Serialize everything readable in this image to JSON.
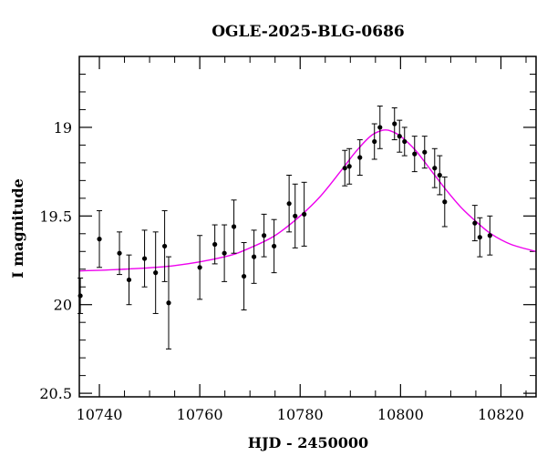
{
  "chart_data": {
    "type": "scatter",
    "title": "OGLE-2025-BLG-0686",
    "xlabel": "HJD - 2450000",
    "ylabel": "I magnitude",
    "xlim": [
      10736,
      10827
    ],
    "ylim": [
      20.52,
      18.6
    ],
    "y_inverted": true,
    "grid": false,
    "x_ticks": [
      10740,
      10760,
      10780,
      10800,
      10820
    ],
    "x_tick_labels": [
      "10740",
      "10760",
      "10780",
      "10800",
      "10820"
    ],
    "y_ticks": [
      19,
      19.5,
      20,
      20.5
    ],
    "y_tick_labels": [
      "19",
      "19.5",
      "20",
      "20.5"
    ],
    "x_minor_step": 5,
    "y_minor_step": 0.1,
    "colors": {
      "model": "#ee00ee",
      "points": "#000000",
      "frame": "#000000"
    },
    "series": [
      {
        "kind": "points_with_errorbars",
        "x": [
          10736.2,
          10740.0,
          10744.0,
          10745.9,
          10749.0,
          10751.2,
          10753.0,
          10753.8,
          10760.0,
          10763.0,
          10764.9,
          10766.8,
          10768.8,
          10770.8,
          10772.8,
          10774.8,
          10777.8,
          10779.0,
          10780.8,
          10788.9,
          10789.8,
          10791.9,
          10794.8,
          10795.9,
          10798.8,
          10799.8,
          10800.8,
          10802.8,
          10804.8,
          10806.8,
          10807.8,
          10808.8,
          10814.8,
          10815.8,
          10817.8
        ],
        "y": [
          19.95,
          19.63,
          19.71,
          19.86,
          19.74,
          19.82,
          19.67,
          19.99,
          19.79,
          19.66,
          19.71,
          19.56,
          19.84,
          19.73,
          19.61,
          19.67,
          19.43,
          19.5,
          19.49,
          19.23,
          19.22,
          19.17,
          19.08,
          19.0,
          18.98,
          19.05,
          19.08,
          19.15,
          19.14,
          19.23,
          19.27,
          19.42,
          19.54,
          19.62,
          19.61
        ],
        "err": [
          0.1,
          0.16,
          0.12,
          0.14,
          0.16,
          0.23,
          0.2,
          0.26,
          0.18,
          0.11,
          0.16,
          0.15,
          0.19,
          0.15,
          0.12,
          0.15,
          0.16,
          0.18,
          0.18,
          0.1,
          0.1,
          0.1,
          0.1,
          0.12,
          0.09,
          0.09,
          0.08,
          0.1,
          0.09,
          0.11,
          0.11,
          0.14,
          0.1,
          0.11,
          0.11
        ]
      },
      {
        "kind": "model_curve",
        "x": [
          10736,
          10745,
          10755,
          10765,
          10770,
          10775,
          10780,
          10784,
          10788,
          10791,
          10794,
          10796,
          10797,
          10798,
          10800,
          10803,
          10806,
          10809,
          10812,
          10815,
          10818,
          10822,
          10827
        ],
        "y": [
          19.81,
          19.8,
          19.78,
          19.73,
          19.68,
          19.61,
          19.5,
          19.39,
          19.25,
          19.14,
          19.05,
          19.02,
          19.015,
          19.02,
          19.05,
          19.13,
          19.24,
          19.35,
          19.45,
          19.53,
          19.6,
          19.66,
          19.7
        ]
      }
    ]
  }
}
